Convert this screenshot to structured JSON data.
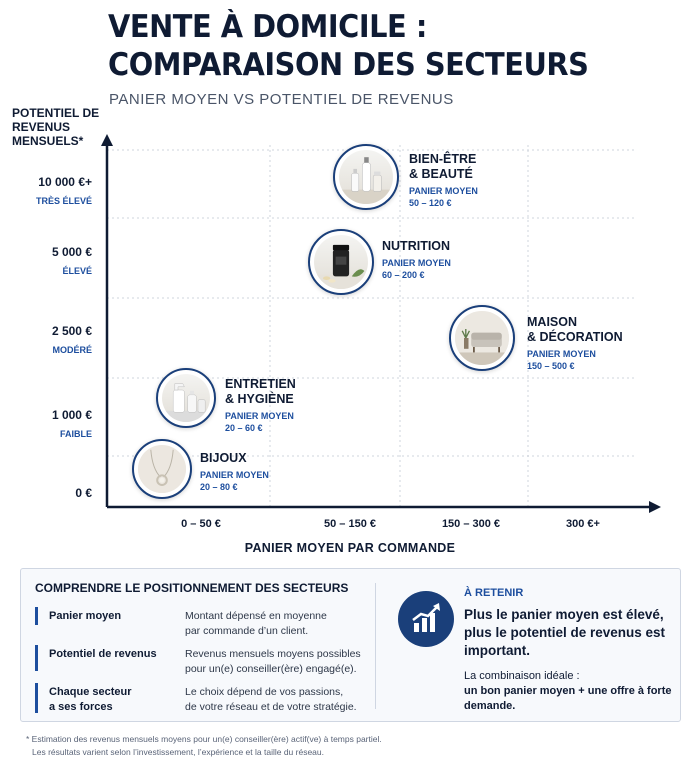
{
  "title_line1": "VENTE À DOMICILE :",
  "title_line2": "COMPARAISON DES SECTEURS",
  "subtitle": "PANIER MOYEN VS POTENTIEL DE REVENUS",
  "chart_data": {
    "type": "scatter",
    "title": "VENTE À DOMICILE : COMPARAISON DES SECTEURS",
    "subtitle": "PANIER MOYEN VS POTENTIEL DE REVENUS",
    "xlabel": "PANIER MOYEN PAR COMMANDE",
    "ylabel": "POTENTIEL DE REVENUS MENSUELS*",
    "x_categories": [
      "0 – 50 €",
      "50 – 150 €",
      "150 – 300 €",
      "300 €+"
    ],
    "y_ticks": [
      {
        "value": "10 000 €+",
        "label": "TRÈS ÉLEVÉ"
      },
      {
        "value": "5 000 €",
        "label": "ÉLEVÉ"
      },
      {
        "value": "2 500 €",
        "label": "MODÉRÉ"
      },
      {
        "value": "1 000 €",
        "label": "FAIBLE"
      },
      {
        "value": "0 €",
        "label": ""
      }
    ],
    "grid": true,
    "points": [
      {
        "name": "BIEN-ÊTRE\n& BEAUTÉ",
        "panier_label": "PANIER MOYEN",
        "panier": "50 – 120 €",
        "x_index": 1.7,
        "y_index": 4.2,
        "icon": "beauty-products-icon"
      },
      {
        "name": "NUTRITION",
        "panier_label": "PANIER MOYEN",
        "panier": "60 – 200 €",
        "x_index": 1.5,
        "y_index": 3.2,
        "icon": "supplement-jar-icon"
      },
      {
        "name": "MAISON\n& DÉCORATION",
        "panier_label": "PANIER MOYEN",
        "panier": "150 – 500 €",
        "x_index": 2.6,
        "y_index": 2.0,
        "icon": "sofa-icon"
      },
      {
        "name": "ENTRETIEN\n& HYGIÈNE",
        "panier_label": "PANIER MOYEN",
        "panier": "20 – 60 €",
        "x_index": 0.6,
        "y_index": 1.2,
        "icon": "cleaning-bottles-icon"
      },
      {
        "name": "BIJOUX",
        "panier_label": "PANIER MOYEN",
        "panier": "20 – 80 €",
        "x_index": 0.4,
        "y_index": 0.35,
        "icon": "necklace-icon"
      }
    ]
  },
  "panel": {
    "title": "COMPRENDRE LE POSITIONNEMENT DES SECTEURS",
    "rows": [
      {
        "key": "Panier moyen",
        "desc": "Montant dépensé en moyenne\npar commande d’un client."
      },
      {
        "key": "Potentiel de revenus",
        "desc": "Revenus mensuels moyens possibles\npour un(e) conseiller(ère) engagé(e)."
      },
      {
        "key": "Chaque secteur\na ses forces",
        "desc": "Le choix dépend de vos passions,\nde votre réseau et de votre stratégie."
      }
    ],
    "retenir_title": "À RETENIR",
    "retenir_main": "Plus le panier moyen est élevé, plus le potentiel de revenus est important.",
    "retenir_sub1": "La combinaison idéale :",
    "retenir_sub2": "un bon panier moyen + une offre à forte demande.",
    "icon": "growth-chart-icon"
  },
  "footnote_line1": "* Estimation des revenus mensuels moyens pour un(e) conseiller(ère) actif(ve) à temps partiel.",
  "footnote_line2": "Les résultats varient selon l’investissement, l’expérience et la taille du réseau.",
  "colors": {
    "navy": "#0f1b33",
    "accent": "#1d4e9e",
    "ring": "#1a3f7a"
  }
}
